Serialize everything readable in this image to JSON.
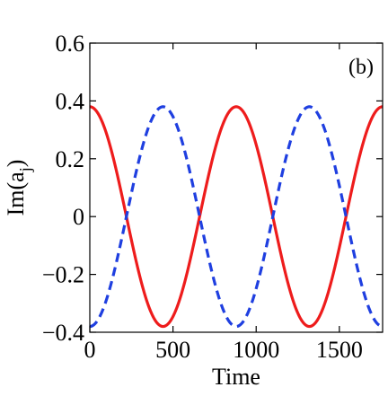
{
  "chart_data": {
    "type": "line",
    "panel_label": "(b)",
    "title": "",
    "xlabel": "Time",
    "ylabel": "Im(a",
    "ylabel_subscript": "j",
    "ylabel_close": ")",
    "xlim": [
      0,
      1760
    ],
    "ylim": [
      -0.4,
      0.6
    ],
    "x_ticks": [
      0,
      500,
      1000,
      1500
    ],
    "x_tick_labels": [
      "0",
      "500",
      "1000",
      "1500"
    ],
    "y_ticks": [
      -0.4,
      -0.2,
      0,
      0.2,
      0.4,
      0.6
    ],
    "y_tick_labels": [
      "−0.4",
      "−0.2",
      "0",
      "0.2",
      "0.4",
      "0.6"
    ],
    "grid": false,
    "legend": "none",
    "series": [
      {
        "style": "solid",
        "color": "#ee1c1c",
        "amplitude": 0.38,
        "period": 880,
        "phase": "cos",
        "x": [
          0,
          110,
          220,
          330,
          440,
          550,
          660,
          770,
          880,
          990,
          1100,
          1210,
          1320,
          1430,
          1540,
          1650,
          1760
        ],
        "values": [
          0.38,
          0.27,
          0.0,
          -0.27,
          -0.38,
          -0.27,
          0.0,
          0.27,
          0.38,
          0.27,
          0.0,
          -0.27,
          -0.38,
          -0.27,
          0.0,
          0.27,
          0.38
        ]
      },
      {
        "style": "dashed",
        "color": "#1f3fe0",
        "amplitude": 0.38,
        "period": 880,
        "phase": "-cos",
        "x": [
          0,
          110,
          220,
          330,
          440,
          550,
          660,
          770,
          880,
          990,
          1100,
          1210,
          1320,
          1430,
          1540,
          1650,
          1760
        ],
        "values": [
          -0.38,
          -0.27,
          0.0,
          0.27,
          0.38,
          0.27,
          0.0,
          -0.27,
          -0.38,
          -0.27,
          0.0,
          0.27,
          0.38,
          0.27,
          0.0,
          -0.27,
          -0.38
        ]
      }
    ]
  }
}
